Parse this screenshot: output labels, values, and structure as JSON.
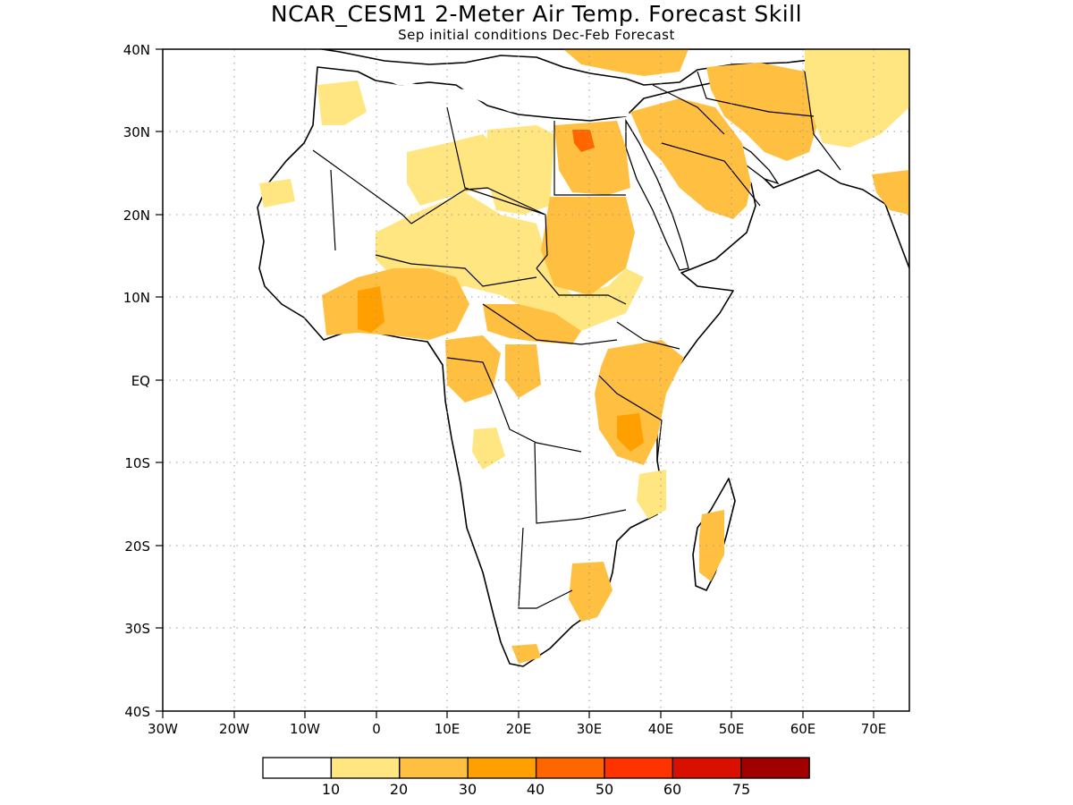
{
  "title": "NCAR_CESM1 2-Meter Air Temp. Forecast Skill",
  "subtitle": "Sep initial conditions  Dec-Feb Forecast",
  "map": {
    "lon_range": [
      -30,
      75
    ],
    "lat_range": [
      -40,
      40
    ],
    "x_ticks": [
      "30W",
      "20W",
      "10W",
      "0",
      "10E",
      "20E",
      "30E",
      "40E",
      "50E",
      "60E",
      "70E"
    ],
    "y_ticks": [
      "40N",
      "30N",
      "20N",
      "10N",
      "EQ",
      "10S",
      "20S",
      "30S",
      "40S"
    ],
    "gridlines": "dotted"
  },
  "colorbar": {
    "labels": [
      "10",
      "20",
      "30",
      "40",
      "50",
      "60",
      "75"
    ],
    "colors": [
      "#ffffff",
      "#ffe680",
      "#ffbf40",
      "#ff9f00",
      "#ff6600",
      "#ff3300",
      "#d90f00",
      "#a00000"
    ]
  },
  "colors": {
    "level_10_20": "#ffe680",
    "level_20_30": "#ffbf40",
    "level_30_40": "#ff9f00",
    "level_40_50": "#ff6600"
  }
}
